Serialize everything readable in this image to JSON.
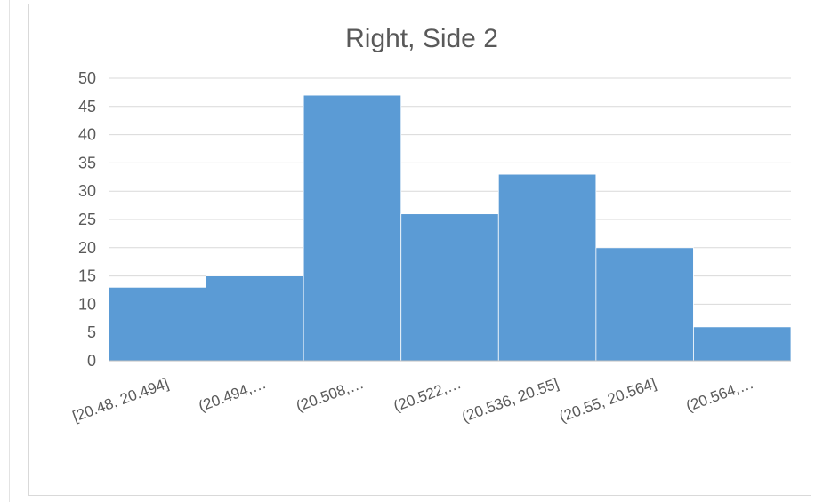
{
  "chart_data": {
    "type": "bar",
    "title": "Right,  Side 2",
    "xlabel": "",
    "ylabel": "",
    "categories": [
      "[20.48, 20.494]",
      "(20.494,…",
      "(20.508,…",
      "(20.522,…",
      "(20.536, 20.55]",
      "(20.55, 20.564]",
      "(20.564,…"
    ],
    "values": [
      13,
      15,
      47,
      26,
      33,
      20,
      6
    ],
    "ylim": [
      0,
      50
    ],
    "yticks": [
      0,
      5,
      10,
      15,
      20,
      25,
      30,
      35,
      40,
      45,
      50
    ],
    "grid": true,
    "legend": "none",
    "bar_color": "#5b9bd5",
    "grid_color": "#d9d9d9"
  }
}
